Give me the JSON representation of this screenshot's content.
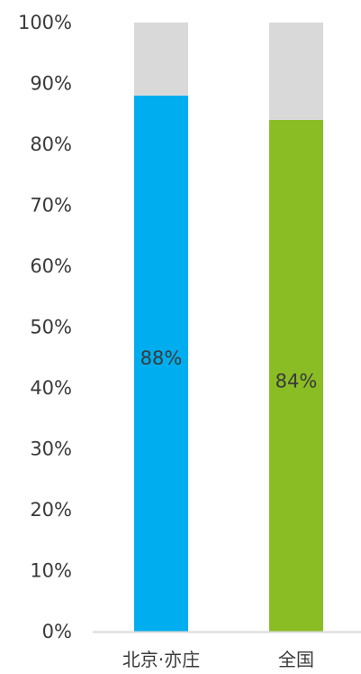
{
  "chart_data": {
    "type": "bar",
    "stacked": true,
    "categories": [
      "北京·亦庄",
      "全国"
    ],
    "values": [
      88,
      84
    ],
    "remainder_values": [
      12,
      16
    ],
    "data_labels": [
      "88%",
      "84%"
    ],
    "ylim": [
      0,
      100
    ],
    "y_ticks": [
      0,
      10,
      20,
      30,
      40,
      50,
      60,
      70,
      80,
      90,
      100
    ],
    "y_tick_labels": [
      "0%",
      "10%",
      "20%",
      "30%",
      "40%",
      "50%",
      "60%",
      "70%",
      "80%",
      "90%",
      "100%"
    ],
    "grid": false,
    "legend": "none",
    "colors": {
      "bars": [
        "#00AEEF",
        "#8ABD24"
      ],
      "remainder": "#D9D9D9",
      "axis": "#D9D9D9",
      "text": "#3A3A3A"
    }
  }
}
